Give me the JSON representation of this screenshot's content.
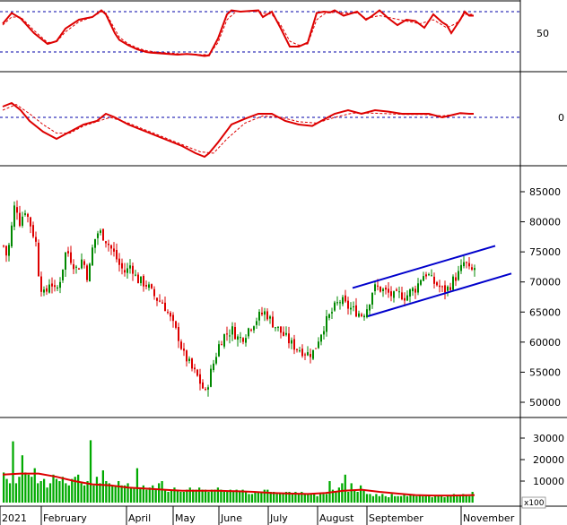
{
  "chart_data": [
    {
      "type": "line",
      "panel": "oscillator-top",
      "y_ticks": [
        "50"
      ],
      "ylim": [
        0,
        100
      ],
      "dashed_levels": [
        80,
        20
      ],
      "series": [
        {
          "color": "#dd0000",
          "style": "solid",
          "x": [
            0,
            10,
            20,
            35,
            50,
            60,
            70,
            85,
            100,
            110,
            115,
            125,
            130,
            140,
            150,
            160,
            165,
            175,
            185,
            195,
            205,
            215,
            225,
            230,
            240,
            250,
            255,
            265,
            275,
            285,
            290,
            300,
            310,
            320,
            330,
            340,
            350,
            358,
            365,
            370,
            380,
            395,
            405,
            410,
            420,
            430,
            440,
            450,
            460,
            470,
            480,
            490,
            495,
            500,
            510,
            515,
            520,
            525
          ],
          "values": [
            62,
            78,
            70,
            48,
            32,
            36,
            55,
            68,
            72,
            82,
            76,
            48,
            38,
            30,
            24,
            20,
            19,
            18,
            17,
            16,
            17,
            16,
            14,
            15,
            40,
            76,
            82,
            80,
            81,
            82,
            72,
            80,
            55,
            28,
            28,
            34,
            78,
            80,
            79,
            82,
            74,
            80,
            68,
            72,
            82,
            70,
            60,
            68,
            66,
            56,
            76,
            64,
            60,
            48,
            68,
            80,
            74,
            74
          ]
        },
        {
          "color": "#dd0000",
          "style": "dashed",
          "x": [
            0,
            10,
            20,
            35,
            50,
            60,
            70,
            85,
            100,
            110,
            115,
            125,
            130,
            140,
            150,
            160,
            170,
            180,
            190,
            200,
            210,
            220,
            230,
            240,
            250,
            260,
            270,
            280,
            290,
            300,
            310,
            320,
            330,
            340,
            350,
            360,
            370,
            380,
            395,
            405,
            420,
            435,
            450,
            465,
            480,
            495,
            505,
            515,
            525
          ],
          "values": [
            60,
            72,
            72,
            52,
            34,
            35,
            50,
            65,
            72,
            80,
            78,
            54,
            42,
            32,
            26,
            22,
            20,
            19,
            18,
            17,
            17,
            16,
            16,
            34,
            68,
            80,
            80,
            81,
            78,
            76,
            60,
            36,
            30,
            32,
            68,
            78,
            79,
            78,
            78,
            70,
            74,
            70,
            66,
            62,
            68,
            56,
            62,
            76,
            76
          ]
        }
      ]
    },
    {
      "type": "line",
      "panel": "oscillator-middle",
      "y_ticks": [
        "0"
      ],
      "zero_line": "dashed",
      "series": [
        {
          "color": "#dd0000",
          "style": "solid",
          "x": [
            0,
            10,
            20,
            30,
            45,
            60,
            75,
            90,
            105,
            115,
            125,
            140,
            160,
            180,
            200,
            215,
            225,
            230,
            240,
            255,
            270,
            285,
            300,
            315,
            330,
            345,
            355,
            370,
            385,
            400,
            415,
            430,
            445,
            460,
            475,
            490,
            500,
            510,
            520,
            525
          ],
          "values": [
            15,
            20,
            10,
            -5,
            -20,
            -30,
            -20,
            -10,
            -5,
            5,
            0,
            -10,
            -20,
            -30,
            -40,
            -50,
            -55,
            -50,
            -35,
            -10,
            -2,
            5,
            5,
            -5,
            -10,
            -12,
            -5,
            5,
            10,
            5,
            10,
            8,
            5,
            5,
            5,
            0,
            3,
            6,
            5,
            5
          ]
        },
        {
          "color": "#dd0000",
          "style": "dashed",
          "x": [
            0,
            15,
            30,
            45,
            60,
            75,
            90,
            105,
            120,
            140,
            160,
            180,
            200,
            220,
            235,
            250,
            270,
            290,
            310,
            330,
            350,
            370,
            390,
            410,
            430,
            450,
            470,
            490,
            510,
            525
          ],
          "values": [
            10,
            18,
            5,
            -10,
            -22,
            -22,
            -12,
            -6,
            0,
            -8,
            -18,
            -28,
            -38,
            -48,
            -50,
            -30,
            -8,
            2,
            0,
            -6,
            -8,
            0,
            6,
            6,
            5,
            4,
            4,
            2,
            5,
            5
          ]
        }
      ]
    },
    {
      "type": "candlestick",
      "panel": "price",
      "y_ticks": [
        "85000",
        "80000",
        "75000",
        "70000",
        "65000",
        "60000",
        "55000",
        "50000"
      ],
      "ylim": [
        48500,
        87500
      ],
      "up_color": "#008800",
      "down_color": "#dd0000",
      "close_points": [
        [
          0,
          76000
        ],
        [
          4,
          74000
        ],
        [
          8,
          78000
        ],
        [
          13,
          83500
        ],
        [
          18,
          80000
        ],
        [
          24,
          82000
        ],
        [
          30,
          79500
        ],
        [
          36,
          76500
        ],
        [
          40,
          70000
        ],
        [
          46,
          67500
        ],
        [
          52,
          70500
        ],
        [
          58,
          68000
        ],
        [
          64,
          71000
        ],
        [
          70,
          75500
        ],
        [
          76,
          73500
        ],
        [
          82,
          72000
        ],
        [
          88,
          74000
        ],
        [
          94,
          70500
        ],
        [
          100,
          76500
        ],
        [
          106,
          78500
        ],
        [
          112,
          77500
        ],
        [
          118,
          76000
        ],
        [
          124,
          74500
        ],
        [
          130,
          72500
        ],
        [
          136,
          71500
        ],
        [
          142,
          73000
        ],
        [
          148,
          70500
        ],
        [
          154,
          70000
        ],
        [
          160,
          69500
        ],
        [
          166,
          68000
        ],
        [
          172,
          67000
        ],
        [
          178,
          66500
        ],
        [
          184,
          64500
        ],
        [
          190,
          62500
        ],
        [
          196,
          60500
        ],
        [
          200,
          58000
        ],
        [
          205,
          57000
        ],
        [
          210,
          55500
        ],
        [
          215,
          54500
        ],
        [
          220,
          53000
        ],
        [
          225,
          51500
        ],
        [
          230,
          54500
        ],
        [
          235,
          57000
        ],
        [
          240,
          59500
        ],
        [
          245,
          61000
        ],
        [
          250,
          61500
        ],
        [
          255,
          62000
        ],
        [
          262,
          60500
        ],
        [
          268,
          61000
        ],
        [
          274,
          62500
        ],
        [
          280,
          63500
        ],
        [
          286,
          64500
        ],
        [
          292,
          65000
        ],
        [
          298,
          63500
        ],
        [
          304,
          62500
        ],
        [
          310,
          61500
        ],
        [
          316,
          60500
        ],
        [
          322,
          59500
        ],
        [
          328,
          59000
        ],
        [
          334,
          58500
        ],
        [
          340,
          58000
        ],
        [
          346,
          58500
        ],
        [
          352,
          61000
        ],
        [
          358,
          63000
        ],
        [
          364,
          64500
        ],
        [
          370,
          66000
        ],
        [
          376,
          67000
        ],
        [
          382,
          66000
        ],
        [
          388,
          65500
        ],
        [
          394,
          65000
        ],
        [
          400,
          64500
        ],
        [
          406,
          66000
        ],
        [
          412,
          69000
        ],
        [
          418,
          69000
        ],
        [
          424,
          68500
        ],
        [
          430,
          68000
        ],
        [
          436,
          67500
        ],
        [
          442,
          68000
        ],
        [
          448,
          67500
        ],
        [
          454,
          68500
        ],
        [
          460,
          69000
        ],
        [
          466,
          71000
        ],
        [
          472,
          71500
        ],
        [
          478,
          70000
        ],
        [
          484,
          69500
        ],
        [
          490,
          68500
        ],
        [
          496,
          69000
        ],
        [
          502,
          70500
        ],
        [
          508,
          71500
        ],
        [
          514,
          73500
        ],
        [
          520,
          71500
        ],
        [
          526,
          72500
        ]
      ],
      "trend_channel": {
        "color": "#0000cc",
        "upper": [
          [
            393,
            69000
          ],
          [
            552,
            76000
          ]
        ],
        "lower": [
          [
            410,
            64300
          ],
          [
            570,
            71400
          ]
        ]
      }
    },
    {
      "type": "bar",
      "panel": "volume",
      "y_ticks": [
        "30000",
        "20000",
        "10000"
      ],
      "ylim": [
        0,
        36000
      ],
      "unit_label": "x100",
      "bar_color": "#00aa00",
      "volumes": [
        14000,
        11000,
        9000,
        28500,
        9000,
        12000,
        22000,
        14000,
        13000,
        12000,
        16000,
        9000,
        10000,
        11000,
        7000,
        9000,
        13000,
        11000,
        10000,
        12000,
        9000,
        8000,
        11000,
        12000,
        13000,
        9000,
        8000,
        10000,
        29000,
        8000,
        12000,
        9000,
        15000,
        10000,
        9000,
        8000,
        8000,
        10000,
        8000,
        8000,
        9000,
        7000,
        7000,
        16000,
        7000,
        8000,
        6000,
        7000,
        8000,
        6000,
        9000,
        10000,
        6000,
        5000,
        6000,
        7000,
        6000,
        5000,
        5000,
        6000,
        7000,
        6000,
        6000,
        7000,
        6000,
        6000,
        5000,
        6000,
        6000,
        7000,
        6000,
        5000,
        5000,
        6000,
        5000,
        6000,
        5000,
        6000,
        5000,
        4000,
        4000,
        5000,
        5000,
        5000,
        6000,
        6000,
        5000,
        5000,
        4000,
        4000,
        4000,
        5000,
        5000,
        4000,
        5000,
        4000,
        5000,
        4000,
        4000,
        4000,
        4000,
        3000,
        4000,
        4000,
        4000,
        10000,
        6000,
        5000,
        7000,
        9000,
        13000,
        5000,
        9000,
        6000,
        5000,
        8000,
        6000,
        4000,
        4000,
        3000,
        4000,
        3000,
        4000,
        3000,
        2500,
        4000,
        3000,
        3000,
        3000,
        4000,
        3000,
        4000,
        3500,
        3000,
        3500,
        3000,
        3000,
        3500,
        2500,
        3000,
        3000,
        3500,
        2500,
        3000,
        3500,
        4000,
        3000,
        3500,
        4000,
        3500,
        3000,
        5000
      ],
      "volume_ma": [
        [
          0,
          13000
        ],
        [
          20,
          13500
        ],
        [
          40,
          13500
        ],
        [
          60,
          12000
        ],
        [
          80,
          10000
        ],
        [
          100,
          8500
        ],
        [
          120,
          8000
        ],
        [
          140,
          7000
        ],
        [
          160,
          6500
        ],
        [
          180,
          6000
        ],
        [
          200,
          5500
        ],
        [
          220,
          5500
        ],
        [
          240,
          5500
        ],
        [
          260,
          5300
        ],
        [
          280,
          5000
        ],
        [
          300,
          4500
        ],
        [
          320,
          4200
        ],
        [
          340,
          4000
        ],
        [
          360,
          4500
        ],
        [
          380,
          5500
        ],
        [
          400,
          6000
        ],
        [
          420,
          5000
        ],
        [
          440,
          4200
        ],
        [
          460,
          3500
        ],
        [
          480,
          3300
        ],
        [
          500,
          3300
        ],
        [
          526,
          3500
        ]
      ],
      "ma_color": "#dd0000"
    }
  ],
  "x_axis": {
    "labels": [
      "2021",
      "February",
      "April",
      "May",
      "June",
      "July",
      "August",
      "September",
      "November"
    ]
  }
}
